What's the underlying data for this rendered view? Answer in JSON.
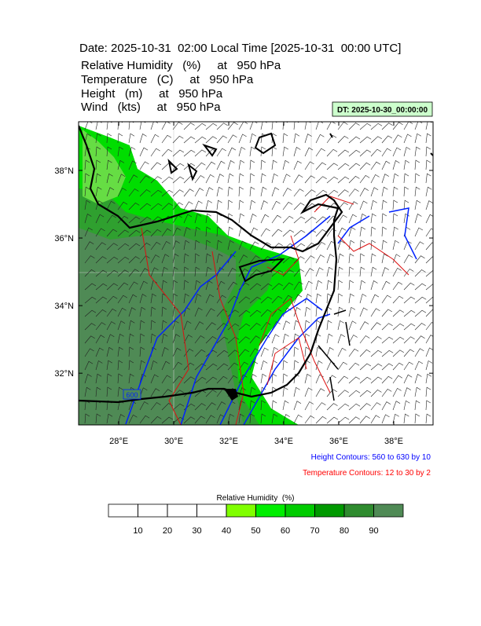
{
  "header": {
    "title": "Date: 2025-10-31  02:00 Local Time [2025-10-31  00:00 UTC]",
    "fields": [
      "Relative Humidity   (%)     at   950 hPa",
      "Temperature   (C)     at   950 hPa",
      "Height   (m)     at   950 hPa",
      "Wind   (kts)     at   950 hPa"
    ],
    "dt_box": "DT: 2025-10-30_00:00:00"
  },
  "map": {
    "xlim": [
      26.54,
      39.43
    ],
    "ylim": [
      30.47,
      39.44
    ],
    "xticks": [
      {
        "value": 28,
        "label": "28°E"
      },
      {
        "value": 30,
        "label": "30°E"
      },
      {
        "value": 32,
        "label": "32°E"
      },
      {
        "value": 34,
        "label": "34°E"
      },
      {
        "value": 36,
        "label": "36°E"
      },
      {
        "value": 38,
        "label": "38°E"
      }
    ],
    "yticks": [
      {
        "value": 32,
        "label": "32°N"
      },
      {
        "value": 34,
        "label": "34°N"
      },
      {
        "value": 36,
        "label": "36°N"
      },
      {
        "value": 38,
        "label": "38°N"
      }
    ],
    "contour_label": "600",
    "notes": [
      {
        "text": "Height Contours: 560 to 630 by 10",
        "color": "#0000ff"
      },
      {
        "text": "Temperature Contours: 12 to 30 by 2",
        "color": "#ff0000"
      }
    ]
  },
  "colorbar": {
    "title": "Relative Humidity  (%)",
    "levels": [
      10,
      20,
      30,
      40,
      50,
      60,
      70,
      80,
      90
    ],
    "colors": [
      "#ffffff",
      "#ffffff",
      "#ffffff",
      "#ffffff",
      "#80ff00",
      "#00ee00",
      "#00cc00",
      "#009900",
      "#2e8b2e",
      "#4f8a55"
    ]
  }
}
